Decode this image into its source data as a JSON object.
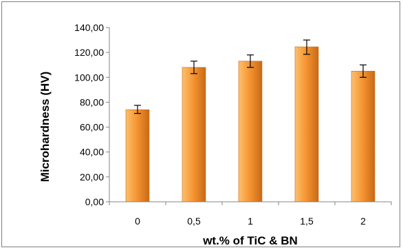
{
  "chart_data": {
    "type": "bar",
    "title": "",
    "xlabel": "wt.% of TiC & BN",
    "ylabel": "Microhardness (HV)",
    "categories": [
      "0",
      "0,5",
      "1",
      "1,5",
      "2"
    ],
    "values": [
      74,
      108,
      113,
      124.5,
      105
    ],
    "error_low": [
      71,
      103,
      108,
      118.5,
      100
    ],
    "error_high": [
      77.5,
      113,
      118,
      130,
      110
    ],
    "ylim": [
      0,
      140
    ],
    "yticks": [
      0,
      20,
      40,
      60,
      80,
      100,
      120,
      140
    ],
    "ytick_labels": [
      "0,00",
      "20,00",
      "40,00",
      "60,00",
      "80,00",
      "100,00",
      "120,00",
      "140,00"
    ],
    "grid": false,
    "legend": false,
    "colors": {
      "bar_light": "#fcc06e",
      "bar_mid": "#f79633",
      "bar_dark": "#c86a16",
      "axis": "#868686",
      "frame": "#7f7f7f"
    }
  }
}
